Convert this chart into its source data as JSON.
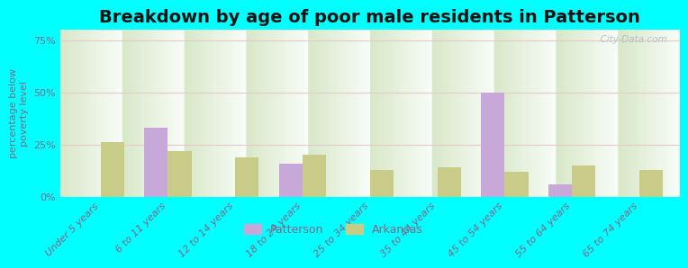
{
  "title": "Breakdown by age of poor male residents in Patterson",
  "ylabel": "percentage below\npoverty level",
  "background_color": "#00FFFF",
  "plot_bg_top_left": "#d8e8c8",
  "plot_bg_top_right": "#e8f0e0",
  "plot_bg_bottom": "#f8fdf8",
  "categories": [
    "Under 5 years",
    "6 to 11 years",
    "12 to 14 years",
    "18 to 24 years",
    "25 to 34 years",
    "35 to 44 years",
    "45 to 54 years",
    "55 to 64 years",
    "65 to 74 years"
  ],
  "patterson_values": [
    null,
    33,
    null,
    16,
    null,
    null,
    50,
    6,
    null
  ],
  "arkansas_values": [
    26,
    22,
    19,
    20,
    13,
    14,
    12,
    15,
    13
  ],
  "patterson_color": "#c8a8d8",
  "arkansas_color": "#c8cc88",
  "ylim": [
    0,
    80
  ],
  "yticks": [
    0,
    25,
    50,
    75
  ],
  "ytick_labels": [
    "0%",
    "25%",
    "50%",
    "75%"
  ],
  "bar_width": 0.35,
  "watermark": "  City-Data.com",
  "legend_labels": [
    "Patterson",
    "Arkansas"
  ],
  "title_fontsize": 14,
  "axis_label_fontsize": 8,
  "tick_fontsize": 8,
  "grid_color": "#e8c8c8",
  "text_color": "#886688"
}
